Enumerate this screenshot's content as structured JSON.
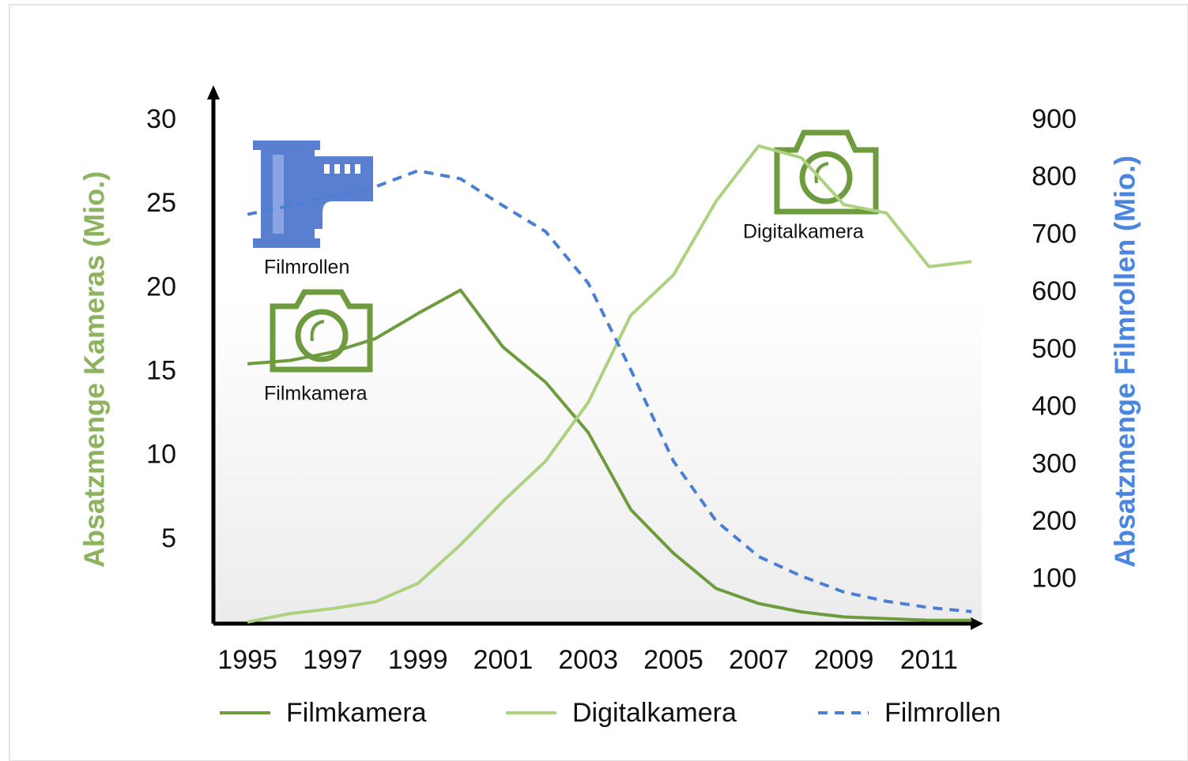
{
  "chart_data": {
    "type": "line",
    "x": [
      1995,
      1996,
      1997,
      1998,
      1999,
      2000,
      2001,
      2002,
      2003,
      2004,
      2005,
      2006,
      2007,
      2008,
      2009,
      2010,
      2011,
      2012
    ],
    "xlim": [
      1994.2,
      2012.2
    ],
    "xticks": [
      1995,
      1997,
      1999,
      2001,
      2003,
      2005,
      2007,
      2009,
      2011
    ],
    "ylim": [
      0,
      30
    ],
    "yticks": [
      5,
      10,
      15,
      20,
      25,
      30
    ],
    "y2lim": [
      24,
      900
    ],
    "y2ticks": [
      100,
      200,
      300,
      400,
      500,
      600,
      700,
      800,
      900
    ],
    "ylabel": "Absatzmenge Kameras (Mio.)",
    "y2label": "Absatzmenge Filmrollen (Mio.)",
    "series": [
      {
        "name": "Filmkamera",
        "color": "#6e9b3d",
        "style": "solid",
        "values": [
          15.5,
          15.7,
          16.2,
          17.0,
          18.5,
          19.9,
          16.5,
          14.4,
          11.4,
          6.8,
          4.2,
          2.1,
          1.2,
          0.7,
          0.4,
          0.3,
          0.2,
          0.2
        ]
      },
      {
        "name": "Digitalkamera",
        "color": "#acd27f",
        "style": "solid",
        "values": [
          0.1,
          0.6,
          0.9,
          1.3,
          2.4,
          4.7,
          7.3,
          9.7,
          13.2,
          18.4,
          20.8,
          25.2,
          28.5,
          27.8,
          25.0,
          24.5,
          21.3,
          21.6
        ]
      },
      {
        "name": "Filmrollen",
        "color": "#4a7fd6",
        "style": "dashed",
        "axis": "y2",
        "values": [
          737,
          752,
          769,
          785,
          813,
          799,
          752,
          707,
          617,
          466,
          307,
          203,
          141,
          107,
          79,
          63,
          52,
          45
        ]
      }
    ],
    "annotations": [
      "Filmrollen",
      "Filmkamera",
      "Digitalkamera"
    ]
  }
}
